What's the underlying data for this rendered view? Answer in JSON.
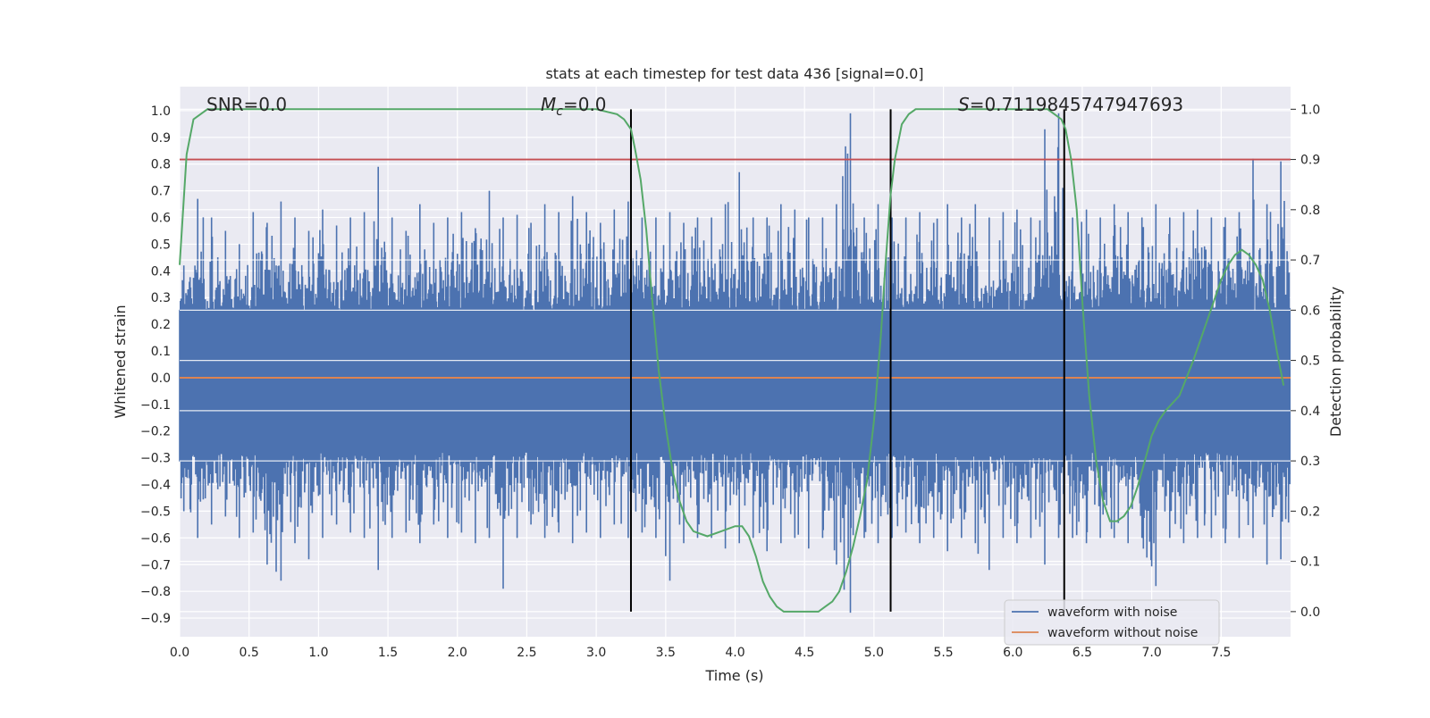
{
  "chart_data": {
    "type": "line",
    "title": "stats at each timestep for test data 436 [signal=0.0]",
    "xlabel": "Time (s)",
    "ylabel": "Whitened strain",
    "y2label": "Detection probability",
    "xlim": [
      0.0,
      8.0
    ],
    "ylim": [
      -0.97,
      1.09
    ],
    "y2lim": [
      -0.05,
      1.045
    ],
    "x_ticks": [
      0.0,
      0.5,
      1.0,
      1.5,
      2.0,
      2.5,
      3.0,
      3.5,
      4.0,
      4.5,
      5.0,
      5.5,
      6.0,
      6.5,
      7.0,
      7.5
    ],
    "x_tick_labels": [
      "0.0",
      "0.5",
      "1.0",
      "1.5",
      "2.0",
      "2.5",
      "3.0",
      "3.5",
      "4.0",
      "4.5",
      "5.0",
      "5.5",
      "6.0",
      "6.5",
      "7.0",
      "7.5"
    ],
    "y_ticks": [
      1.0,
      0.9,
      0.8,
      0.7,
      0.6,
      0.5,
      0.4,
      0.3,
      0.2,
      0.1,
      0.0,
      -0.1,
      -0.2,
      -0.3,
      -0.4,
      -0.5,
      -0.6,
      -0.7,
      -0.8,
      -0.9
    ],
    "y_tick_labels": [
      "1.0",
      "0.9",
      "0.8",
      "0.7",
      "0.6",
      "0.5",
      "0.4",
      "0.3",
      "0.2",
      "0.1",
      "0.0",
      "−0.1",
      "−0.2",
      "−0.3",
      "−0.4",
      "−0.5",
      "−0.6",
      "−0.7",
      "−0.8",
      "−0.9"
    ],
    "y2_ticks": [
      1.0,
      0.9,
      0.8,
      0.7,
      0.6,
      0.5,
      0.4,
      0.3,
      0.2,
      0.1,
      0.0
    ],
    "y2_tick_labels": [
      "1.0",
      "0.9",
      "0.8",
      "0.7",
      "0.6",
      "0.5",
      "0.4",
      "0.3",
      "0.2",
      "0.1",
      "0.0"
    ],
    "annotations": {
      "snr": "SNR=0.0",
      "mc_symbol": "M",
      "mc_sub": "c",
      "mc_value": "=0.0",
      "s_symbol": "S",
      "s_value": "=0.7119845747947693"
    },
    "threshold": 0.9,
    "vertical_lines": [
      3.25,
      5.12,
      6.37
    ],
    "legend": {
      "position": "lower-right",
      "entries": [
        {
          "label": "waveform with noise",
          "color": "#4c72b0"
        },
        {
          "label": "waveform without noise",
          "color": "#dd8452"
        }
      ]
    },
    "series": [
      {
        "name": "waveform with noise",
        "color": "#4c72b0",
        "note": "dense noise trace; per-time envelope extremes (max, min) in strain units",
        "x": [
          0.0,
          0.1,
          0.2,
          0.3,
          0.4,
          0.5,
          0.6,
          0.7,
          0.8,
          0.9,
          1.0,
          1.1,
          1.2,
          1.3,
          1.4,
          1.5,
          1.6,
          1.7,
          1.8,
          1.9,
          2.0,
          2.1,
          2.2,
          2.3,
          2.4,
          2.5,
          2.6,
          2.7,
          2.8,
          2.9,
          3.0,
          3.1,
          3.2,
          3.3,
          3.4,
          3.5,
          3.6,
          3.7,
          3.8,
          3.9,
          4.0,
          4.1,
          4.2,
          4.3,
          4.4,
          4.5,
          4.6,
          4.7,
          4.8,
          4.9,
          5.0,
          5.1,
          5.2,
          5.3,
          5.4,
          5.5,
          5.6,
          5.7,
          5.8,
          5.9,
          6.0,
          6.1,
          6.2,
          6.3,
          6.4,
          6.5,
          6.6,
          6.7,
          6.8,
          6.9,
          7.0,
          7.1,
          7.2,
          7.3,
          7.4,
          7.5,
          7.6,
          7.7,
          7.8,
          7.9,
          8.0
        ],
        "upper": [
          0.42,
          0.67,
          0.6,
          0.55,
          0.5,
          0.62,
          0.58,
          0.66,
          0.6,
          0.55,
          0.63,
          0.57,
          0.6,
          0.62,
          0.79,
          0.6,
          0.55,
          0.65,
          0.58,
          0.6,
          0.62,
          0.56,
          0.7,
          0.6,
          0.61,
          0.58,
          0.65,
          0.62,
          0.68,
          0.62,
          0.58,
          0.63,
          0.66,
          0.6,
          0.6,
          0.62,
          0.58,
          0.6,
          0.6,
          0.65,
          0.77,
          0.6,
          0.6,
          0.65,
          0.63,
          0.6,
          0.6,
          0.65,
          0.99,
          0.6,
          0.65,
          0.6,
          0.6,
          0.62,
          0.58,
          0.65,
          0.6,
          0.65,
          0.6,
          0.62,
          0.63,
          0.6,
          0.93,
          0.99,
          0.6,
          0.63,
          0.6,
          0.65,
          0.62,
          0.6,
          0.65,
          0.6,
          0.62,
          0.63,
          0.6,
          0.6,
          0.62,
          0.82,
          0.65,
          0.81,
          0.6
        ],
        "lower": [
          -0.5,
          -0.6,
          -0.55,
          -0.52,
          -0.6,
          -0.58,
          -0.7,
          -0.76,
          -0.62,
          -0.68,
          -0.6,
          -0.55,
          -0.58,
          -0.6,
          -0.72,
          -0.6,
          -0.58,
          -0.62,
          -0.55,
          -0.6,
          -0.58,
          -0.62,
          -0.6,
          -0.79,
          -0.6,
          -0.55,
          -0.6,
          -0.58,
          -0.62,
          -0.58,
          -0.6,
          -0.55,
          -0.6,
          -0.58,
          -0.6,
          -0.76,
          -0.62,
          -0.6,
          -0.6,
          -0.64,
          -0.62,
          -0.6,
          -0.65,
          -0.62,
          -0.6,
          -0.64,
          -0.6,
          -0.7,
          -0.88,
          -0.6,
          -0.62,
          -0.6,
          -0.58,
          -0.62,
          -0.6,
          -0.65,
          -0.6,
          -0.62,
          -0.72,
          -0.6,
          -0.62,
          -0.6,
          -0.7,
          -0.6,
          -0.6,
          -0.62,
          -0.6,
          -0.6,
          -0.62,
          -0.6,
          -0.78,
          -0.6,
          -0.62,
          -0.6,
          -0.6,
          -0.62,
          -0.6,
          -0.6,
          -0.7,
          -0.68,
          -0.6
        ]
      },
      {
        "name": "waveform without noise",
        "color": "#dd8452",
        "x": [
          0.0,
          8.0
        ],
        "y": [
          0.0,
          0.0
        ]
      },
      {
        "name": "detection probability",
        "color": "#55a868",
        "axis": "right",
        "x": [
          0.0,
          0.05,
          0.1,
          0.15,
          0.2,
          0.5,
          1.0,
          1.5,
          2.0,
          2.5,
          3.0,
          3.15,
          3.2,
          3.25,
          3.28,
          3.32,
          3.36,
          3.4,
          3.45,
          3.5,
          3.55,
          3.6,
          3.65,
          3.7,
          3.8,
          3.9,
          4.0,
          4.05,
          4.1,
          4.15,
          4.2,
          4.25,
          4.3,
          4.35,
          4.4,
          4.5,
          4.6,
          4.65,
          4.7,
          4.75,
          4.8,
          4.85,
          4.9,
          4.95,
          5.0,
          5.05,
          5.08,
          5.12,
          5.15,
          5.2,
          5.25,
          5.3,
          6.0,
          6.25,
          6.3,
          6.35,
          6.38,
          6.42,
          6.46,
          6.5,
          6.55,
          6.6,
          6.65,
          6.7,
          6.75,
          6.8,
          6.85,
          6.9,
          6.95,
          7.0,
          7.05,
          7.1,
          7.2,
          7.3,
          7.4,
          7.5,
          7.55,
          7.6,
          7.65,
          7.7,
          7.75,
          7.8,
          7.85,
          7.9,
          7.95
        ],
        "y": [
          0.69,
          0.91,
          0.98,
          0.99,
          1.0,
          1.0,
          1.0,
          1.0,
          1.0,
          1.0,
          1.0,
          0.99,
          0.98,
          0.96,
          0.92,
          0.86,
          0.76,
          0.63,
          0.48,
          0.37,
          0.28,
          0.22,
          0.18,
          0.16,
          0.15,
          0.16,
          0.17,
          0.17,
          0.15,
          0.11,
          0.06,
          0.03,
          0.01,
          0.0,
          0.0,
          0.0,
          0.0,
          0.01,
          0.02,
          0.04,
          0.08,
          0.13,
          0.19,
          0.26,
          0.38,
          0.55,
          0.68,
          0.83,
          0.9,
          0.97,
          0.99,
          1.0,
          1.0,
          1.0,
          0.99,
          0.98,
          0.96,
          0.9,
          0.8,
          0.62,
          0.43,
          0.3,
          0.22,
          0.18,
          0.18,
          0.19,
          0.21,
          0.25,
          0.3,
          0.35,
          0.38,
          0.4,
          0.43,
          0.5,
          0.58,
          0.66,
          0.69,
          0.71,
          0.72,
          0.71,
          0.69,
          0.66,
          0.6,
          0.52,
          0.45
        ]
      }
    ]
  }
}
